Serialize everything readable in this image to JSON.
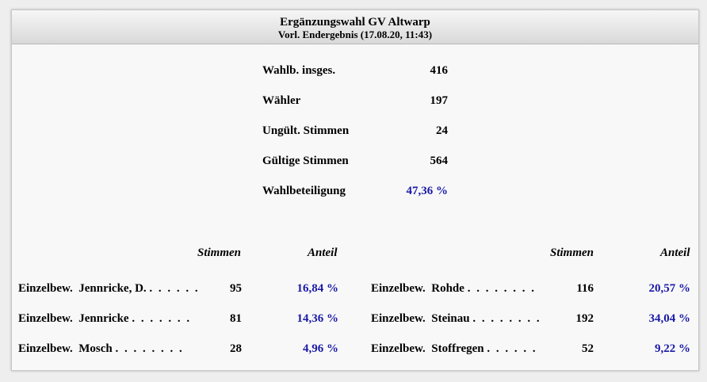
{
  "header": {
    "title": "Ergänzungswahl GV Altwarp",
    "subtitle": "Vorl. Endergebnis (17.08.20, 11:43)"
  },
  "summary": [
    {
      "label": "Wahlb. insges.",
      "value": "416"
    },
    {
      "label": "Wähler",
      "value": "197"
    },
    {
      "label": "Ungült. Stimmen",
      "value": "24"
    },
    {
      "label": "Gültige Stimmen",
      "value": "564"
    },
    {
      "label": "Wahlbeteiligung",
      "value": "47,36 %"
    }
  ],
  "columns": {
    "stimmen": "Stimmen",
    "anteil": "Anteil"
  },
  "results_left": [
    {
      "name": "Einzelbew.  Jennricke, D.",
      "dots": ". . . . . .",
      "stimmen": "95",
      "anteil": "16,84 %"
    },
    {
      "name": "Einzelbew.  Jennricke",
      "dots": ". . . . . . .",
      "stimmen": "81",
      "anteil": "14,36 %"
    },
    {
      "name": "Einzelbew.  Mosch",
      "dots": ". . . . . . . .",
      "stimmen": "28",
      "anteil": "4,96 %"
    }
  ],
  "results_right": [
    {
      "name": "Einzelbew.  Rohde",
      "dots": ". . . . . . . .",
      "stimmen": "116",
      "anteil": "20,57 %"
    },
    {
      "name": "Einzelbew.  Steinau",
      "dots": ". . . . . . . .",
      "stimmen": "192",
      "anteil": "34,04 %"
    },
    {
      "name": "Einzelbew.  Stoffregen",
      "dots": ". . . . . .",
      "stimmen": "52",
      "anteil": "9,22 %"
    }
  ],
  "colors": {
    "accent": "#1a1aa8"
  }
}
